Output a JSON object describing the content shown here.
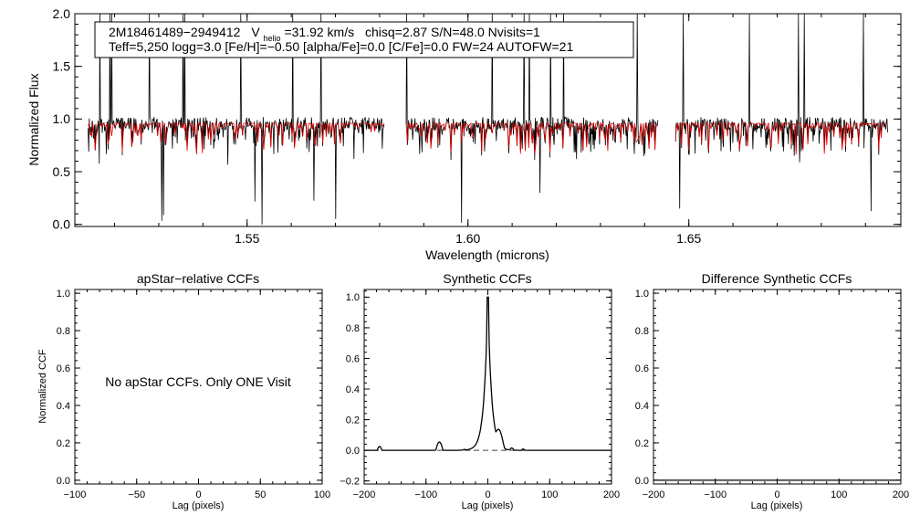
{
  "chart_data": [
    {
      "type": "line",
      "panel": "spectrum",
      "xlabel": "Wavelength (microns)",
      "ylabel": "Normalized Flux",
      "xlim": [
        1.511,
        1.698
      ],
      "ylim": [
        -0.02,
        2.0
      ],
      "x_ticks": [
        "1.55",
        "1.60",
        "1.65"
      ],
      "y_ticks": [
        "0.0",
        "0.5",
        "1.0",
        "1.5",
        "2.0"
      ],
      "chips": [
        [
          1.514,
          1.581
        ],
        [
          1.586,
          1.643
        ],
        [
          1.647,
          1.695
        ]
      ],
      "series": [
        {
          "key": "observed",
          "color": "#000000"
        },
        {
          "key": "synthetic",
          "color": "#e00000"
        }
      ],
      "annotation": {
        "id": "2M18461489−2949412",
        "v_prefix": "V",
        "v_sub": "helio",
        "v_value": "=31.92 km/s",
        "rest1": "chisq=2.87  S/N=48.0  Nvisits=1",
        "line2": "Teff=5,250 logg=3.0 [Fe/H]=−0.50 [alpha/Fe]=0.0 [C/Fe]=0.0 FW=24 AUTOFW=21"
      }
    },
    {
      "type": "line",
      "panel": "apstar",
      "title": "apStar−relative CCFs",
      "xlabel": "Lag (pixels)",
      "ylabel": "Normalized CCF",
      "xlim": [
        -100,
        100
      ],
      "ylim": [
        -0.02,
        1.02
      ],
      "x_ticks": [
        "−100",
        "−50",
        "0",
        "50",
        "100"
      ],
      "y_ticks": [
        "0.0",
        "0.2",
        "0.4",
        "0.6",
        "0.8",
        "1.0"
      ],
      "message": "No apStar CCFs.  Only ONE Visit"
    },
    {
      "type": "line",
      "panel": "synthetic",
      "title": "Synthetic CCFs",
      "xlabel": "Lag (pixels)",
      "xlim": [
        -200,
        200
      ],
      "ylim": [
        -0.22,
        1.05
      ],
      "x_ticks": [
        "−200",
        "−100",
        "0",
        "100",
        "200"
      ],
      "y_ticks": [
        "−0.2",
        "0.0",
        "0.2",
        "0.4",
        "0.6",
        "0.8",
        "1.0"
      ],
      "peak_lag": 0,
      "peak_value": 1.0,
      "zero_line": 0.0
    },
    {
      "type": "line",
      "panel": "difference",
      "title": "Difference Synthetic CCFs",
      "xlabel": "Lag (pixels)",
      "xlim": [
        -200,
        200
      ],
      "ylim": [
        -0.02,
        1.02
      ],
      "x_ticks": [
        "−200",
        "−100",
        "0",
        "100",
        "200"
      ],
      "y_ticks": [
        "0.0",
        "0.2",
        "0.4",
        "0.6",
        "0.8",
        "1.0"
      ],
      "flat_value": 0.0
    }
  ]
}
